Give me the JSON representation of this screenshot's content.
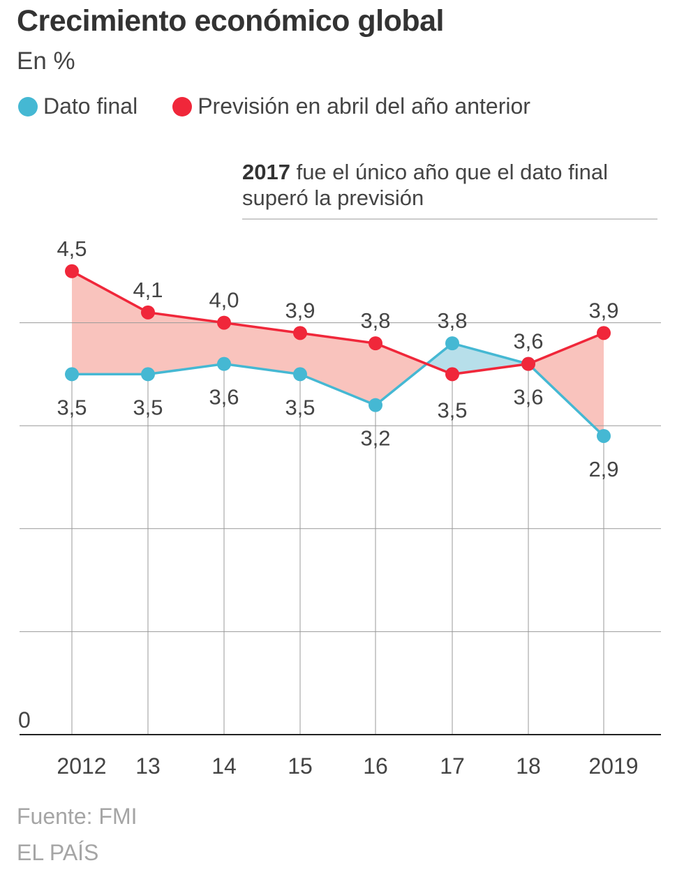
{
  "header": {
    "title": "Crecimiento económico global",
    "subtitle": "En %"
  },
  "legend": {
    "final_label": "Dato final",
    "forecast_label": "Previsión en abril del año anterior"
  },
  "annotation": {
    "bold": "2017",
    "text": " fue el único año que el dato final superó la previsión"
  },
  "footer": {
    "source": "Fuente: FMI",
    "credit": "EL PAÍS"
  },
  "colors": {
    "final": "#45b8d3",
    "forecast": "#f0273a",
    "fill_forecast_above": "#f9c3bd",
    "fill_final_above": "#b7dfea",
    "grid": "#999999",
    "axis": "#222222"
  },
  "chart_data": {
    "type": "line",
    "title": "Crecimiento económico global",
    "subtitle": "En %",
    "categories": [
      "2012",
      "13",
      "14",
      "15",
      "16",
      "17",
      "18",
      "2019"
    ],
    "series": [
      {
        "name": "Dato final",
        "values": [
          3.5,
          3.5,
          3.6,
          3.5,
          3.2,
          3.8,
          3.6,
          2.9
        ],
        "labels": [
          "3,5",
          "3,5",
          "3,6",
          "3,5",
          "3,2",
          "3,8",
          "3,6",
          "2,9"
        ]
      },
      {
        "name": "Previsión en abril del año anterior",
        "values": [
          4.5,
          4.1,
          4.0,
          3.9,
          3.8,
          3.5,
          3.6,
          3.9
        ],
        "labels": [
          "4,5",
          "4,1",
          "4,0",
          "3,9",
          "3,8",
          "3,5",
          "3,6",
          "3,9"
        ]
      }
    ],
    "yaxis": {
      "min": 0,
      "max": 4.8,
      "tick_label": "0",
      "gridlines": [
        1,
        2,
        3,
        4
      ]
    },
    "xlabel": "",
    "ylabel": "",
    "grid": true,
    "legend": "top-left"
  }
}
